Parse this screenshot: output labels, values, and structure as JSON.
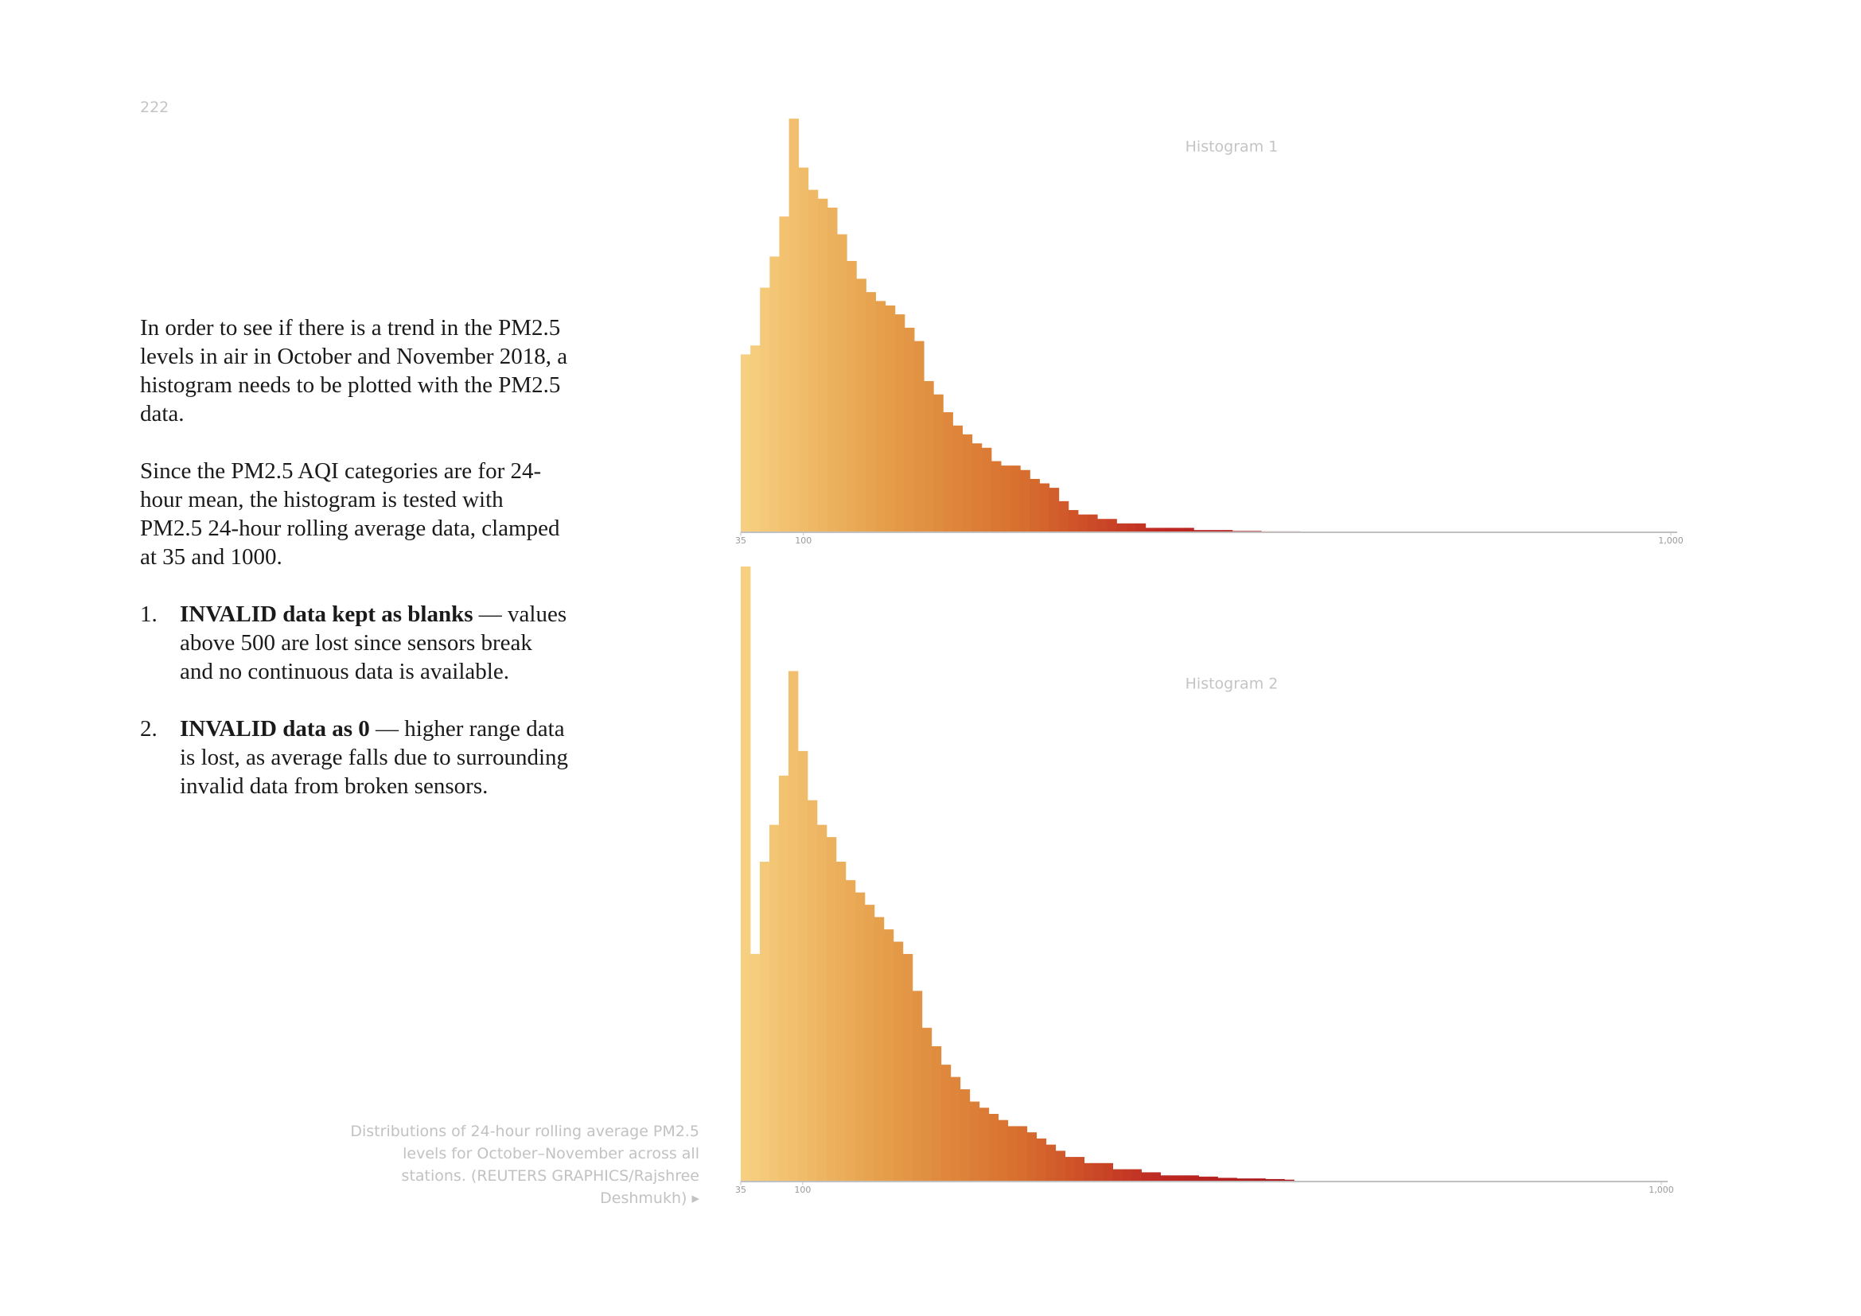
{
  "page_number": "222",
  "paragraphs": [
    "In order to see if there is a trend in the PM2.5 levels in air in October and November 2018, a histogram needs to be plotted with the PM2.5 data.",
    "Since the PM2.5 AQI categories are for 24-hour mean, the histogram is tested with PM2.5 24-hour rolling average data, clamped at 35 and 1000."
  ],
  "list": [
    {
      "number": "1.",
      "bold": "INVALID data kept as blanks",
      "text": " — values above 500 are lost since sensors break and no continuous data is available."
    },
    {
      "number": "2.",
      "bold": "INVALID data as 0",
      "text": " — higher range data is lost, as average falls due to surrounding invalid data from broken sensors."
    }
  ],
  "caption": "Distributions of 24-hour rolling average PM2.5 levels for October–November across all stations. (REUTERS GRAPHICS/Rajshree Deshmukh) ▸",
  "chart_data": [
    {
      "type": "histogram",
      "title": "Histogram 1",
      "bins": [
        35,
        45,
        55,
        65,
        75,
        85,
        95,
        105,
        115,
        125,
        135,
        145,
        155,
        165,
        175,
        185,
        195,
        205,
        215,
        225,
        235,
        245,
        255,
        265,
        275,
        285,
        295,
        305,
        315,
        325,
        335,
        345,
        355,
        365,
        375,
        385,
        395,
        405,
        415,
        425,
        435,
        445,
        455,
        465,
        475,
        485,
        495,
        505,
        515,
        525,
        535,
        545,
        555,
        565,
        575,
        585,
        595,
        605,
        615
      ],
      "values": [
        40,
        42,
        55,
        62,
        71,
        93,
        82,
        77,
        75,
        73,
        67,
        61,
        57,
        54,
        52,
        51,
        49,
        46,
        43,
        34,
        31,
        27,
        24,
        22,
        20,
        19,
        16,
        15,
        15,
        14,
        12,
        11,
        10,
        7,
        5,
        4,
        4,
        3,
        3,
        2,
        2,
        2,
        1,
        1,
        1,
        1,
        1,
        0.5,
        0.5,
        0.5,
        0.5,
        0.3,
        0.3,
        0.3,
        0.2,
        0.2,
        0.2,
        0.2
      ],
      "xlim": [
        35,
        1000
      ],
      "xticks": [
        35,
        100,
        {
          "value": 1000,
          "label": "1,000"
        }
      ],
      "ylim": [
        0,
        100
      ],
      "colors": [
        "#f7d282",
        "#e6a04b",
        "#d86f2e",
        "#bf2a22",
        "#a8181c"
      ]
    },
    {
      "type": "histogram",
      "title": "Histogram 2",
      "bins": [
        35,
        45,
        55,
        65,
        75,
        85,
        95,
        105,
        115,
        125,
        135,
        145,
        155,
        165,
        175,
        185,
        195,
        205,
        215,
        225,
        235,
        245,
        255,
        265,
        275,
        285,
        295,
        305,
        315,
        325,
        335,
        345,
        355,
        365,
        375,
        385,
        395,
        405,
        415,
        425,
        435,
        445,
        455,
        465,
        475,
        485,
        495,
        505,
        515,
        525,
        535,
        545,
        555,
        565,
        575,
        585,
        595,
        605,
        615
      ],
      "values": [
        100,
        37,
        52,
        58,
        66,
        83,
        70,
        62,
        58,
        56,
        52,
        49,
        47,
        45,
        43,
        41,
        39,
        37,
        31,
        25,
        22,
        19,
        17,
        15,
        13,
        12,
        11,
        10,
        9,
        9,
        8,
        7,
        6,
        5,
        4,
        4,
        3,
        3,
        3,
        2,
        2,
        2,
        1.5,
        1.5,
        1,
        1,
        1,
        1,
        0.8,
        0.8,
        0.6,
        0.6,
        0.5,
        0.5,
        0.5,
        0.4,
        0.4,
        0.3
      ],
      "xlim": [
        35,
        1000
      ],
      "xticks": [
        35,
        100,
        {
          "value": 1000,
          "label": "1,000"
        }
      ],
      "ylim": [
        0,
        100
      ],
      "colors": [
        "#f7d282",
        "#e6a04b",
        "#d86f2e",
        "#bf2a22",
        "#a8181c"
      ]
    }
  ]
}
